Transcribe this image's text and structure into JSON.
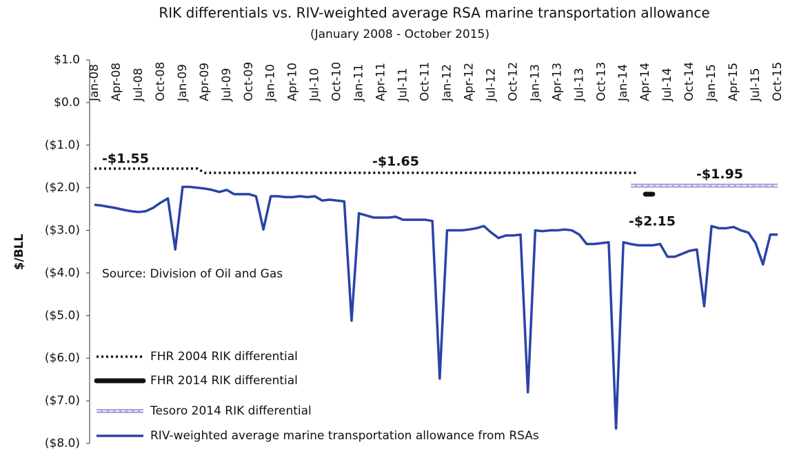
{
  "chart_data": {
    "type": "line",
    "title": "RIK differentials vs. RIV-weighted average RSA marine transportation allowance",
    "subtitle": "(January 2008 - October 2015)",
    "y_label": "$/BLL",
    "source": "Source: Division of Oil and Gas",
    "categories": [
      "Jan-08",
      null,
      null,
      "Apr-08",
      null,
      null,
      "Jul-08",
      null,
      null,
      "Oct-08",
      null,
      null,
      "Jan-09",
      null,
      null,
      "Apr-09",
      null,
      null,
      "Jul-09",
      null,
      null,
      "Oct-09",
      null,
      null,
      "Jan-10",
      null,
      null,
      "Apr-10",
      null,
      null,
      "Jul-10",
      null,
      null,
      "Oct-10",
      null,
      null,
      "Jan-11",
      null,
      null,
      "Apr-11",
      null,
      null,
      "Jul-11",
      null,
      null,
      "Oct-11",
      null,
      null,
      "Jan-12",
      null,
      null,
      "Apr-12",
      null,
      null,
      "Jul-12",
      null,
      null,
      "Oct-12",
      null,
      null,
      "Jan-13",
      null,
      null,
      "Apr-13",
      null,
      null,
      "Jul-13",
      null,
      null,
      "Oct-13",
      null,
      null,
      "Jan-14",
      null,
      null,
      "Apr-14",
      null,
      null,
      "Jul-14",
      null,
      null,
      "Oct-14",
      null,
      null,
      "Jan-15",
      null,
      null,
      "Apr-15",
      null,
      null,
      "Jul-15",
      null,
      null,
      "Oct-15"
    ],
    "ylim": [
      -8,
      1
    ],
    "yticks": [
      {
        "value": 1,
        "label": "$1.0"
      },
      {
        "value": 0,
        "label": "$0.0"
      },
      {
        "value": -1,
        "label": "($1.0)"
      },
      {
        "value": -2,
        "label": "($2.0)"
      },
      {
        "value": -3,
        "label": "($3.0)"
      },
      {
        "value": -4,
        "label": "($4.0)"
      },
      {
        "value": -5,
        "label": "($5.0)"
      },
      {
        "value": -6,
        "label": "($6.0)"
      },
      {
        "value": -7,
        "label": "($7.0)"
      },
      {
        "value": -8,
        "label": "($8.0)"
      }
    ],
    "grid": false,
    "legend": "lower left",
    "annotations": [
      {
        "text": "-$1.55",
        "value": -1.55
      },
      {
        "text": "-$1.65",
        "value": -1.65
      },
      {
        "text": "-$1.95",
        "value": -1.95
      },
      {
        "text": "-$2.15",
        "value": -2.15
      }
    ],
    "series": [
      {
        "name": "FHR 2004 RIK differential",
        "color": "#111111",
        "style": "dotted",
        "values": [
          -1.55,
          -1.55,
          -1.55,
          -1.55,
          -1.55,
          -1.55,
          -1.55,
          -1.55,
          -1.55,
          -1.55,
          -1.55,
          -1.55,
          -1.55,
          -1.55,
          -1.55,
          -1.65,
          -1.65,
          -1.65,
          -1.65,
          -1.65,
          -1.65,
          -1.65,
          -1.65,
          -1.65,
          -1.65,
          -1.65,
          -1.65,
          -1.65,
          -1.65,
          -1.65,
          -1.65,
          -1.65,
          -1.65,
          -1.65,
          -1.65,
          -1.65,
          -1.65,
          -1.65,
          -1.65,
          -1.65,
          -1.65,
          -1.65,
          -1.65,
          -1.65,
          -1.65,
          -1.65,
          -1.65,
          -1.65,
          -1.65,
          -1.65,
          -1.65,
          -1.65,
          -1.65,
          -1.65,
          -1.65,
          -1.65,
          -1.65,
          -1.65,
          -1.65,
          -1.65,
          -1.65,
          -1.65,
          -1.65,
          -1.65,
          -1.65,
          -1.65,
          -1.65,
          -1.65,
          -1.65,
          -1.65,
          -1.65,
          -1.65,
          -1.65,
          -1.65,
          -1.65,
          null,
          null,
          null,
          null,
          null,
          null,
          null,
          null,
          null,
          null,
          null,
          null,
          null,
          null,
          null,
          null,
          null,
          null,
          null
        ]
      },
      {
        "name": "FHR 2014 RIK differential",
        "color": "#111111",
        "style": "thick",
        "values": [
          null,
          null,
          null,
          null,
          null,
          null,
          null,
          null,
          null,
          null,
          null,
          null,
          null,
          null,
          null,
          null,
          null,
          null,
          null,
          null,
          null,
          null,
          null,
          null,
          null,
          null,
          null,
          null,
          null,
          null,
          null,
          null,
          null,
          null,
          null,
          null,
          null,
          null,
          null,
          null,
          null,
          null,
          null,
          null,
          null,
          null,
          null,
          null,
          null,
          null,
          null,
          null,
          null,
          null,
          null,
          null,
          null,
          null,
          null,
          null,
          null,
          null,
          null,
          null,
          null,
          null,
          null,
          null,
          null,
          null,
          null,
          null,
          null,
          null,
          null,
          -2.15,
          -2.15,
          null,
          null,
          null,
          null,
          null,
          null,
          null,
          null,
          null,
          null,
          null,
          null,
          null,
          null,
          null,
          null,
          null
        ]
      },
      {
        "name": "Tesoro 2014 RIK differential",
        "color": "#a9a6dc",
        "style": "double",
        "values": [
          null,
          null,
          null,
          null,
          null,
          null,
          null,
          null,
          null,
          null,
          null,
          null,
          null,
          null,
          null,
          null,
          null,
          null,
          null,
          null,
          null,
          null,
          null,
          null,
          null,
          null,
          null,
          null,
          null,
          null,
          null,
          null,
          null,
          null,
          null,
          null,
          null,
          null,
          null,
          null,
          null,
          null,
          null,
          null,
          null,
          null,
          null,
          null,
          null,
          null,
          null,
          null,
          null,
          null,
          null,
          null,
          null,
          null,
          null,
          null,
          null,
          null,
          null,
          null,
          null,
          null,
          null,
          null,
          null,
          null,
          null,
          null,
          null,
          -1.95,
          -1.95,
          -1.95,
          -1.95,
          -1.95,
          -1.95,
          -1.95,
          -1.95,
          -1.95,
          -1.95,
          -1.95,
          -1.95,
          -1.95,
          -1.95,
          -1.95,
          -1.95,
          -1.95,
          -1.95,
          -1.95,
          -1.95,
          -1.95
        ]
      },
      {
        "name": "RIV-weighted average marine transportation allowance from RSAs",
        "color": "#2a43a8",
        "style": "solid",
        "values": [
          -2.4,
          -2.42,
          -2.45,
          -2.48,
          -2.52,
          -2.55,
          -2.57,
          -2.55,
          -2.47,
          -2.35,
          -2.25,
          -3.45,
          -1.98,
          -1.98,
          -2.0,
          -2.02,
          -2.05,
          -2.1,
          -2.05,
          -2.15,
          -2.15,
          -2.15,
          -2.2,
          -2.98,
          -2.2,
          -2.2,
          -2.22,
          -2.22,
          -2.2,
          -2.22,
          -2.2,
          -2.3,
          -2.28,
          -2.3,
          -2.32,
          -5.12,
          -2.6,
          -2.65,
          -2.7,
          -2.7,
          -2.7,
          -2.68,
          -2.75,
          -2.75,
          -2.75,
          -2.75,
          -2.78,
          -6.48,
          -3.0,
          -3.0,
          -3.0,
          -2.98,
          -2.95,
          -2.9,
          -3.05,
          -3.18,
          -3.12,
          -3.12,
          -3.1,
          -6.8,
          -3.0,
          -3.02,
          -3.0,
          -3.0,
          -2.98,
          -3.0,
          -3.1,
          -3.32,
          -3.32,
          -3.3,
          -3.28,
          -7.65,
          -3.28,
          -3.32,
          -3.35,
          -3.35,
          -3.35,
          -3.32,
          -3.62,
          -3.62,
          -3.55,
          -3.48,
          -3.45,
          -4.78,
          -2.9,
          -2.95,
          -2.95,
          -2.92,
          -3.0,
          -3.05,
          -3.3,
          -3.8,
          -3.1,
          -3.1
        ]
      }
    ]
  }
}
